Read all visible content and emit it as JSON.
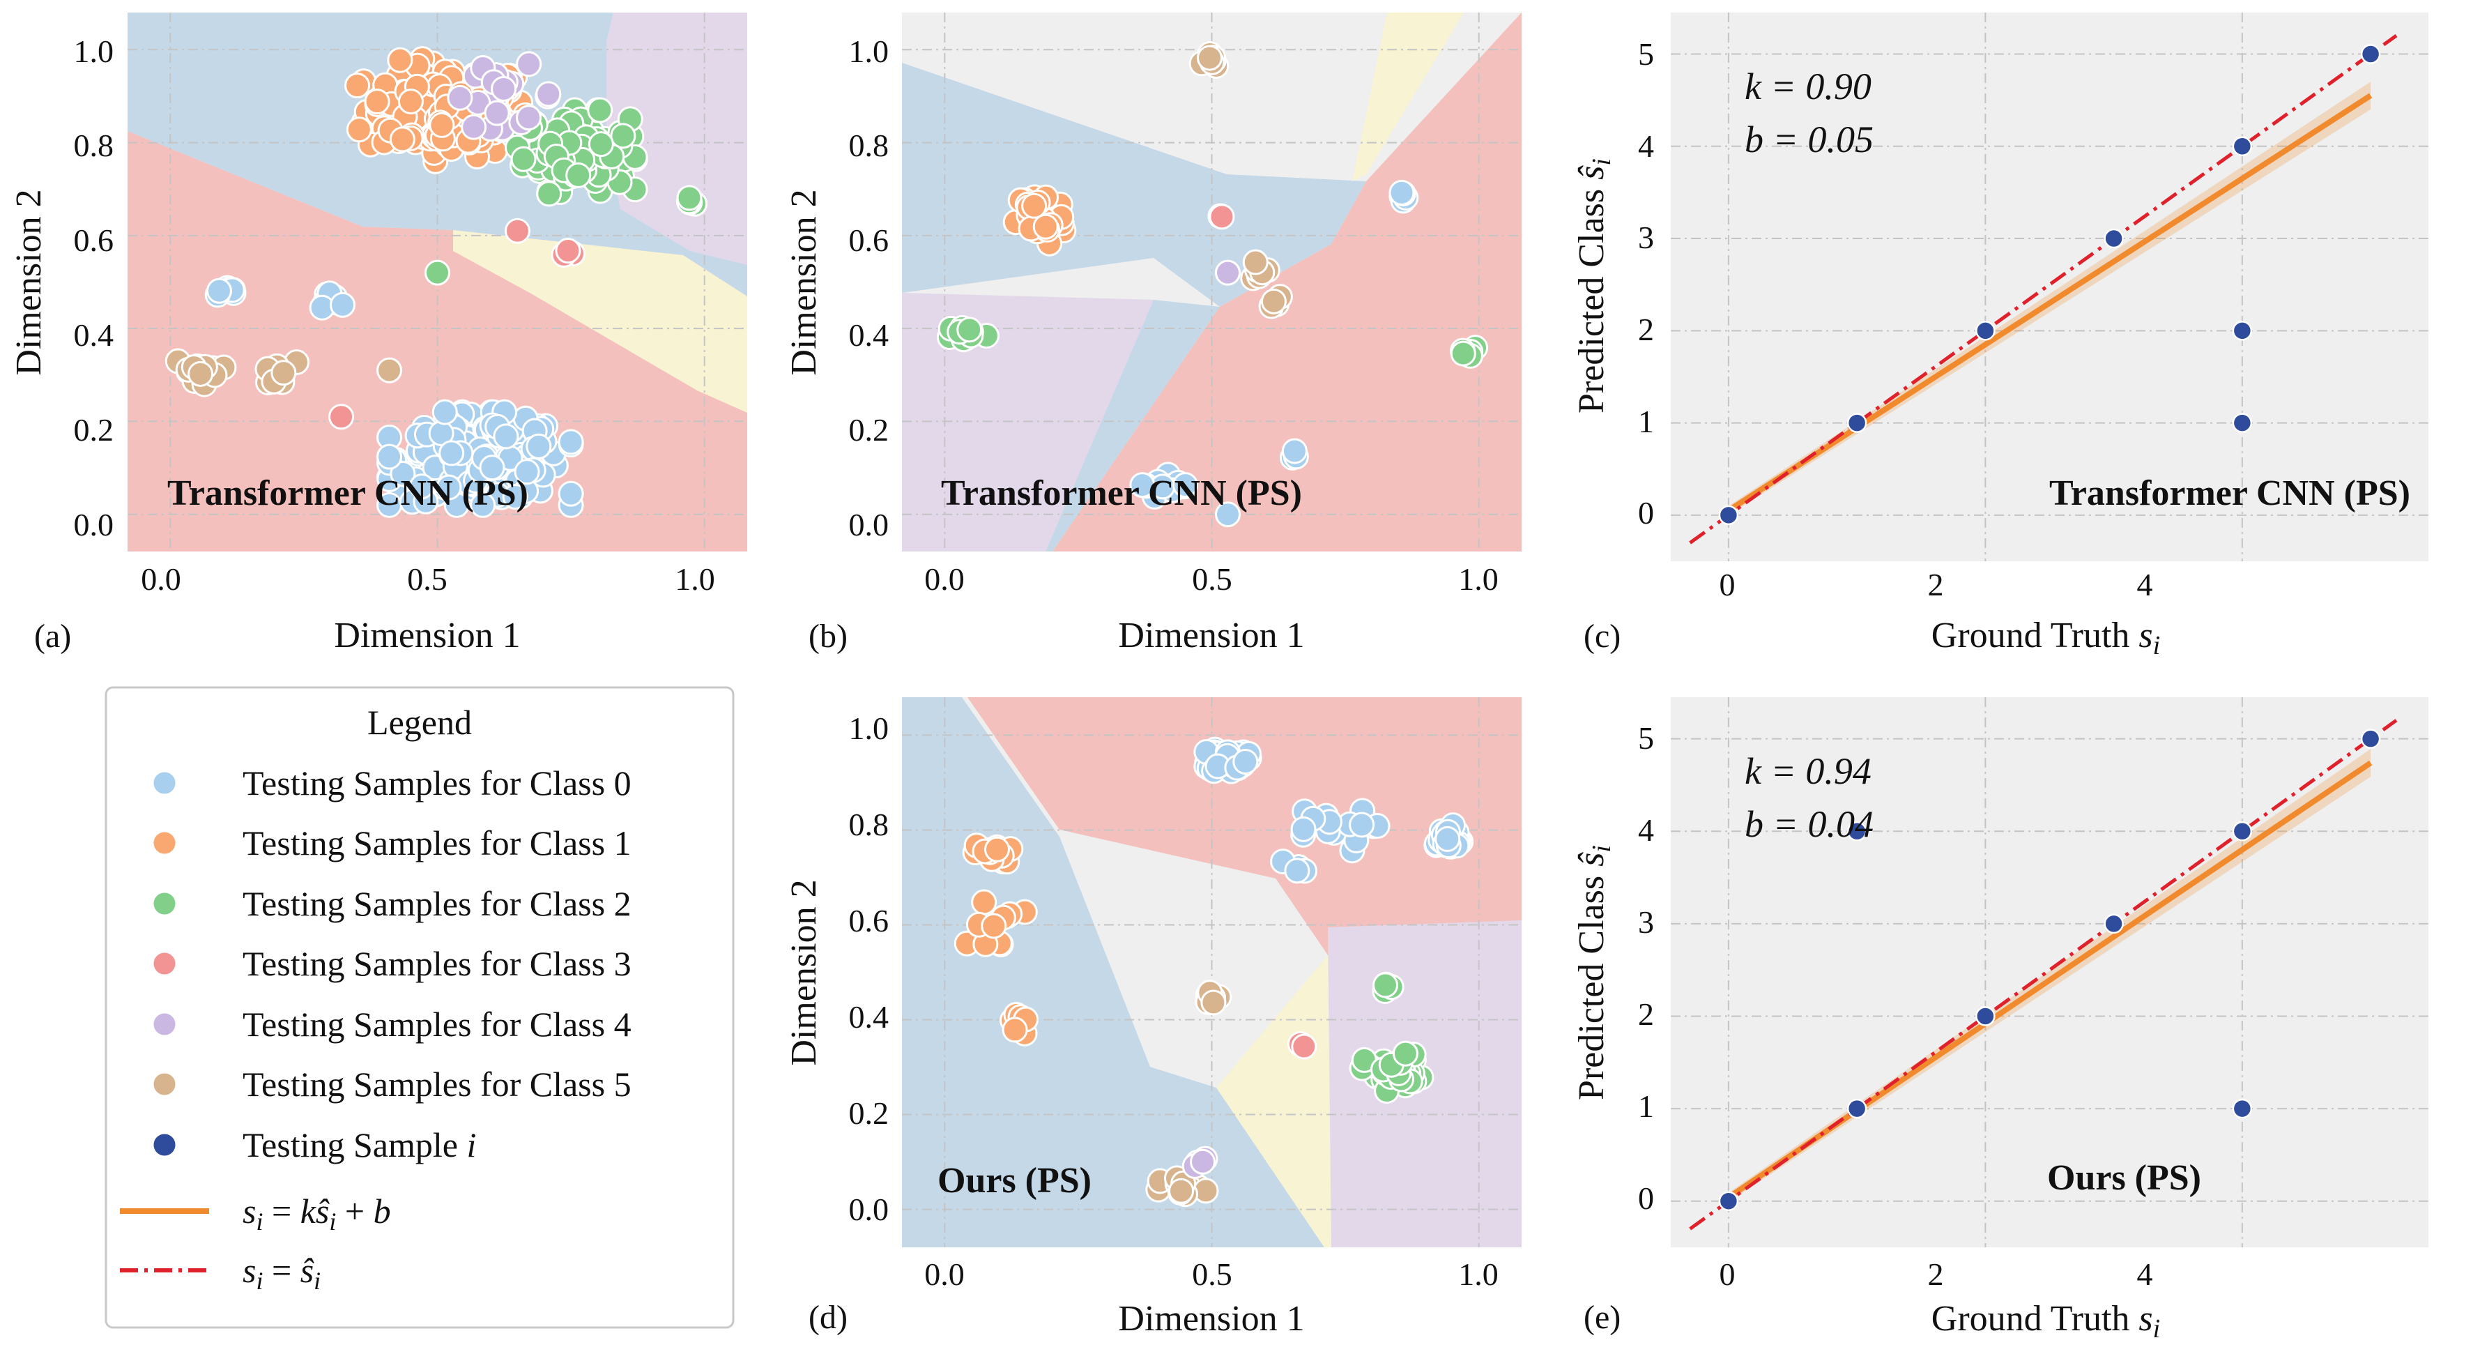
{
  "figure": {
    "panels": {
      "a": {
        "letter": "(a)",
        "title": "Transformer CNN (PS)",
        "xlabel": "Dimension 1",
        "ylabel": "Dimension 2"
      },
      "b": {
        "letter": "(b)",
        "title": "Transformer CNN (PS)",
        "xlabel": "Dimension 1",
        "ylabel": "Dimension 2"
      },
      "c": {
        "letter": "(c)",
        "title": "Transformer CNN (PS)",
        "xlabel": "Ground Truth",
        "xlabel_math": "s_i",
        "ylabel": "Predicted Class",
        "ylabel_math": "ŝ_i",
        "k_label": "k = 0.90",
        "b_label": "b = 0.05"
      },
      "d": {
        "letter": "(d)",
        "title": "Ours (PS)",
        "xlabel": "Dimension 1",
        "ylabel": "Dimension 2"
      },
      "e": {
        "letter": "(e)",
        "title": "Ours (PS)",
        "xlabel": "Ground Truth",
        "xlabel_math": "s_i",
        "ylabel": "Predicted Class",
        "ylabel_math": "ŝ_i",
        "k_label": "k = 0.94",
        "b_label": "b = 0.04"
      }
    },
    "legend": {
      "title": "Legend",
      "entries": [
        {
          "label": "Testing Samples for Class 0",
          "color": "#a8cfee"
        },
        {
          "label": "Testing Samples for Class 1",
          "color": "#f8a870"
        },
        {
          "label": "Testing Samples for Class 2",
          "color": "#82cf8a"
        },
        {
          "label": "Testing Samples for Class 3",
          "color": "#f39494"
        },
        {
          "label": "Testing Samples for Class 4",
          "color": "#cbb8e2"
        },
        {
          "label": "Testing Samples for Class 5",
          "color": "#d7b38e"
        },
        {
          "label": "Testing Sample i",
          "color": "#2f4b9c"
        },
        {
          "label": "s_i = kŝ_i + b",
          "color": "#f08a2c"
        },
        {
          "label": "s_i = ŝ_i",
          "color": "#e0202a"
        }
      ]
    }
  },
  "colors": {
    "class0": "#a8cfee",
    "class1": "#f8a870",
    "class2": "#82cf8a",
    "class3": "#f39494",
    "class4": "#cbb8e2",
    "class5": "#d7b38e",
    "sample": "#2f4b9c",
    "fit": "#f08a2c",
    "identity": "#e0202a",
    "region_blue": "#c5d8e8",
    "region_red": "#f4c0bd",
    "region_purple": "#e3d7ea",
    "region_yellow": "#f8f3d2",
    "region_gray": "#efefef"
  },
  "chart_data": [
    {
      "id": "a",
      "type": "scatter",
      "title": "Transformer CNN (PS)",
      "xlabel": "Dimension 1",
      "ylabel": "Dimension 2",
      "xlim": [
        -0.08,
        1.08
      ],
      "ylim": [
        -0.08,
        1.08
      ],
      "xticks": [
        0.0,
        0.5,
        1.0
      ],
      "yticks": [
        0.0,
        0.2,
        0.4,
        0.6,
        0.8,
        1.0
      ],
      "grid": true,
      "clusters": [
        {
          "class": 1,
          "cx": 0.52,
          "cy": 0.87,
          "rx": 0.17,
          "ry": 0.11,
          "n": 170
        },
        {
          "class": 2,
          "cx": 0.76,
          "cy": 0.78,
          "rx": 0.11,
          "ry": 0.09,
          "n": 110
        },
        {
          "class": 4,
          "cx": 0.62,
          "cy": 0.9,
          "rx": 0.12,
          "ry": 0.07,
          "n": 20
        },
        {
          "class": 0,
          "cx": 0.58,
          "cy": 0.12,
          "rx": 0.17,
          "ry": 0.1,
          "n": 240
        },
        {
          "class": 0,
          "cx": 0.1,
          "cy": 0.48,
          "rx": 0.03,
          "ry": 0.015,
          "n": 8
        },
        {
          "class": 0,
          "cx": 0.3,
          "cy": 0.46,
          "rx": 0.03,
          "ry": 0.02,
          "n": 8
        },
        {
          "class": 5,
          "cx": 0.05,
          "cy": 0.31,
          "rx": 0.05,
          "ry": 0.03,
          "n": 14
        },
        {
          "class": 5,
          "cx": 0.2,
          "cy": 0.3,
          "rx": 0.04,
          "ry": 0.03,
          "n": 10
        },
        {
          "class": 2,
          "cx": 0.97,
          "cy": 0.67,
          "rx": 0.02,
          "ry": 0.015,
          "n": 4
        },
        {
          "class": 3,
          "cx": 0.74,
          "cy": 0.56,
          "rx": 0.02,
          "ry": 0.01,
          "n": 3
        },
        {
          "class": 3,
          "cx": 0.65,
          "cy": 0.61,
          "rx": 0.005,
          "ry": 0.005,
          "n": 1
        },
        {
          "class": 2,
          "cx": 0.5,
          "cy": 0.52,
          "rx": 0.005,
          "ry": 0.005,
          "n": 1
        },
        {
          "class": 5,
          "cx": 0.41,
          "cy": 0.31,
          "rx": 0.005,
          "ry": 0.005,
          "n": 1
        },
        {
          "class": 3,
          "cx": 0.32,
          "cy": 0.21,
          "rx": 0.005,
          "ry": 0.005,
          "n": 1
        }
      ]
    },
    {
      "id": "b",
      "type": "scatter",
      "title": "Transformer CNN (PS)",
      "xlabel": "Dimension 1",
      "ylabel": "Dimension 2",
      "xlim": [
        -0.08,
        1.08
      ],
      "ylim": [
        -0.08,
        1.08
      ],
      "xticks": [
        0.0,
        0.5,
        1.0
      ],
      "yticks": [
        0.0,
        0.2,
        0.4,
        0.6,
        0.8,
        1.0
      ],
      "grid": true,
      "clusters": [
        {
          "class": 5,
          "cx": 0.5,
          "cy": 0.97,
          "rx": 0.02,
          "ry": 0.03,
          "n": 7
        },
        {
          "class": 1,
          "cx": 0.18,
          "cy": 0.64,
          "rx": 0.05,
          "ry": 0.07,
          "n": 40
        },
        {
          "class": 2,
          "cx": 0.04,
          "cy": 0.39,
          "rx": 0.04,
          "ry": 0.02,
          "n": 12
        },
        {
          "class": 3,
          "cx": 0.52,
          "cy": 0.64,
          "rx": 0.015,
          "ry": 0.005,
          "n": 2
        },
        {
          "class": 5,
          "cx": 0.59,
          "cy": 0.53,
          "rx": 0.02,
          "ry": 0.03,
          "n": 6
        },
        {
          "class": 5,
          "cx": 0.62,
          "cy": 0.46,
          "rx": 0.015,
          "ry": 0.02,
          "n": 4
        },
        {
          "class": 4,
          "cx": 0.53,
          "cy": 0.52,
          "rx": 0.005,
          "ry": 0.005,
          "n": 1
        },
        {
          "class": 0,
          "cx": 0.86,
          "cy": 0.69,
          "rx": 0.02,
          "ry": 0.015,
          "n": 5
        },
        {
          "class": 2,
          "cx": 0.98,
          "cy": 0.35,
          "rx": 0.02,
          "ry": 0.025,
          "n": 6
        },
        {
          "class": 0,
          "cx": 0.42,
          "cy": 0.06,
          "rx": 0.05,
          "ry": 0.03,
          "n": 16
        },
        {
          "class": 0,
          "cx": 0.65,
          "cy": 0.12,
          "rx": 0.02,
          "ry": 0.02,
          "n": 3
        },
        {
          "class": 0,
          "cx": 0.53,
          "cy": 0.0,
          "rx": 0.005,
          "ry": 0.005,
          "n": 1
        }
      ]
    },
    {
      "id": "c",
      "type": "scatter",
      "title": "Transformer CNN (PS)",
      "xlabel": "Ground Truth s_i",
      "ylabel": "Predicted Class ŝ_i",
      "xlim": [
        -0.45,
        5.45
      ],
      "ylim": [
        -0.5,
        5.45
      ],
      "xticks": [
        0,
        2,
        4
      ],
      "yticks": [
        0,
        1,
        2,
        3,
        4,
        5
      ],
      "grid": true,
      "points": [
        {
          "x": 0,
          "y": 0
        },
        {
          "x": 1,
          "y": 1
        },
        {
          "x": 2,
          "y": 2
        },
        {
          "x": 3,
          "y": 3
        },
        {
          "x": 4,
          "y": 4
        },
        {
          "x": 4,
          "y": 2
        },
        {
          "x": 4,
          "y": 1
        },
        {
          "x": 5,
          "y": 5
        }
      ],
      "fit": {
        "k": 0.9,
        "b": 0.05,
        "x": [
          0,
          5
        ]
      },
      "identity": {
        "x": [
          -0.3,
          5.2
        ]
      }
    },
    {
      "id": "d",
      "type": "scatter",
      "title": "Ours (PS)",
      "xlabel": "Dimension 1",
      "ylabel": "Dimension 2",
      "xlim": [
        -0.08,
        1.08
      ],
      "ylim": [
        -0.08,
        1.08
      ],
      "xticks": [
        0.0,
        0.5,
        1.0
      ],
      "yticks": [
        0.0,
        0.2,
        0.4,
        0.6,
        0.8,
        1.0
      ],
      "grid": true,
      "clusters": [
        {
          "class": 0,
          "cx": 0.53,
          "cy": 0.95,
          "rx": 0.04,
          "ry": 0.03,
          "n": 40
        },
        {
          "class": 0,
          "cx": 0.94,
          "cy": 0.78,
          "rx": 0.04,
          "ry": 0.03,
          "n": 30
        },
        {
          "class": 0,
          "cx": 0.71,
          "cy": 0.8,
          "rx": 0.1,
          "ry": 0.05,
          "n": 16
        },
        {
          "class": 0,
          "cx": 0.65,
          "cy": 0.72,
          "rx": 0.03,
          "ry": 0.02,
          "n": 4
        },
        {
          "class": 1,
          "cx": 0.09,
          "cy": 0.75,
          "rx": 0.04,
          "ry": 0.02,
          "n": 16
        },
        {
          "class": 1,
          "cx": 0.08,
          "cy": 0.6,
          "rx": 0.07,
          "ry": 0.06,
          "n": 12
        },
        {
          "class": 1,
          "cx": 0.14,
          "cy": 0.4,
          "rx": 0.015,
          "ry": 0.05,
          "n": 8
        },
        {
          "class": 2,
          "cx": 0.84,
          "cy": 0.29,
          "rx": 0.06,
          "ry": 0.04,
          "n": 40
        },
        {
          "class": 2,
          "cx": 0.83,
          "cy": 0.46,
          "rx": 0.01,
          "ry": 0.03,
          "n": 4
        },
        {
          "class": 5,
          "cx": 0.5,
          "cy": 0.45,
          "rx": 0.03,
          "ry": 0.02,
          "n": 8
        },
        {
          "class": 3,
          "cx": 0.67,
          "cy": 0.345,
          "rx": 0.01,
          "ry": 0.005,
          "n": 2
        },
        {
          "class": 5,
          "cx": 0.45,
          "cy": 0.04,
          "rx": 0.05,
          "ry": 0.03,
          "n": 12
        },
        {
          "class": 4,
          "cx": 0.48,
          "cy": 0.09,
          "rx": 0.02,
          "ry": 0.02,
          "n": 4
        }
      ]
    },
    {
      "id": "e",
      "type": "scatter",
      "title": "Ours (PS)",
      "xlabel": "Ground Truth s_i",
      "ylabel": "Predicted Class ŝ_i",
      "xlim": [
        -0.45,
        5.45
      ],
      "ylim": [
        -0.5,
        5.45
      ],
      "xticks": [
        0,
        2,
        4
      ],
      "yticks": [
        0,
        1,
        2,
        3,
        4,
        5
      ],
      "grid": true,
      "points": [
        {
          "x": 0,
          "y": 0
        },
        {
          "x": 1,
          "y": 1
        },
        {
          "x": 1,
          "y": 4
        },
        {
          "x": 2,
          "y": 2
        },
        {
          "x": 3,
          "y": 3
        },
        {
          "x": 4,
          "y": 4
        },
        {
          "x": 4,
          "y": 1
        },
        {
          "x": 5,
          "y": 5
        }
      ],
      "fit": {
        "k": 0.94,
        "b": 0.04,
        "x": [
          0,
          5
        ]
      },
      "identity": {
        "x": [
          -0.3,
          5.2
        ]
      }
    }
  ]
}
